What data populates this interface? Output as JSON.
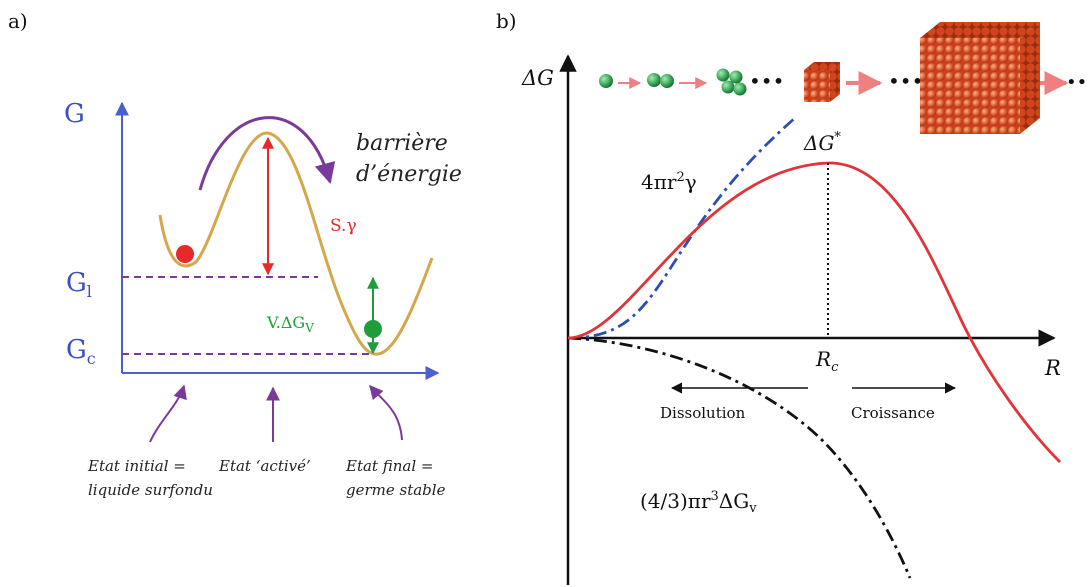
{
  "panel_a": {
    "label": "a)",
    "axis_y": "G",
    "level_liquid_base": "G",
    "level_liquid_sub": "l",
    "level_crystal_base": "G",
    "level_crystal_sub": "c",
    "barrier_line1": "barrière",
    "barrier_line2": "d’énergie",
    "surface_term": "S.γ",
    "volume_term_base": "V.ΔG",
    "volume_term_sub": "V",
    "state_initial_line1": "Etat initial =",
    "state_initial_line2": "liquide surfondu",
    "state_activated": "Etat ‘activé’",
    "state_final_line1": "Etat final =",
    "state_final_line2": "germe stable",
    "colors": {
      "axis": "#4a5fd0",
      "curve": "#d4a84a",
      "level": "#7a3a9a",
      "red": "#e8282a",
      "green": "#1f9d3a",
      "purple": "#7a3a9a"
    }
  },
  "panel_b": {
    "label": "b)",
    "axis_y": "ΔG",
    "axis_x": "R",
    "peak_label": "ΔG",
    "peak_sup": "*",
    "critical_radius_base": "R",
    "critical_radius_sub": "c",
    "surface_term_base": "4πr",
    "surface_term_sup": "2",
    "surface_term_tail": "γ",
    "volume_term_base": "(4/3)πr",
    "volume_term_sup": "3",
    "volume_term_tail": "ΔG",
    "volume_term_sub": "v",
    "dissolution": "Dissolution",
    "growth": "Croissance",
    "colors": {
      "total": "#e0343a",
      "surface": "#2a4fb0",
      "volume": "#111111",
      "atom_green": "#1fa04a",
      "atom_orange": "#e0502a"
    }
  }
}
